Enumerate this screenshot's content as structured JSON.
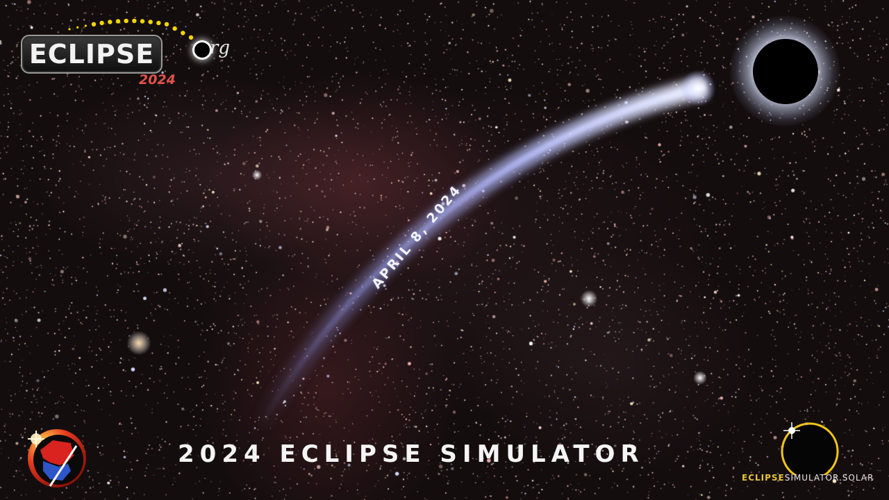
{
  "logo": {
    "word": "ECLIPSE",
    "year": "2024",
    "org_suffix": "rg",
    "arc_color": "#f2d600",
    "year_color": "#e0524a"
  },
  "headline": {
    "date": "APRIL 8, 2024",
    "title": "2024 ECLIPSE SIMULATOR"
  },
  "branding": {
    "part1": "ECLIPSE",
    "part2": "SIMULATOR.SOLAR",
    "part1_color": "#e8c53a"
  },
  "icons": {
    "top_left": "eclipse-2024-org-logo-icon",
    "top_right": "total-solar-eclipse-icon",
    "bottom_left": "north-america-eclipse-path-badge-icon",
    "bottom_right": "diamond-ring-eclipse-icon"
  },
  "colors": {
    "sky": "#140d0e",
    "nebula": "#8c3c46",
    "comet_tail": "#a8b0ff"
  }
}
